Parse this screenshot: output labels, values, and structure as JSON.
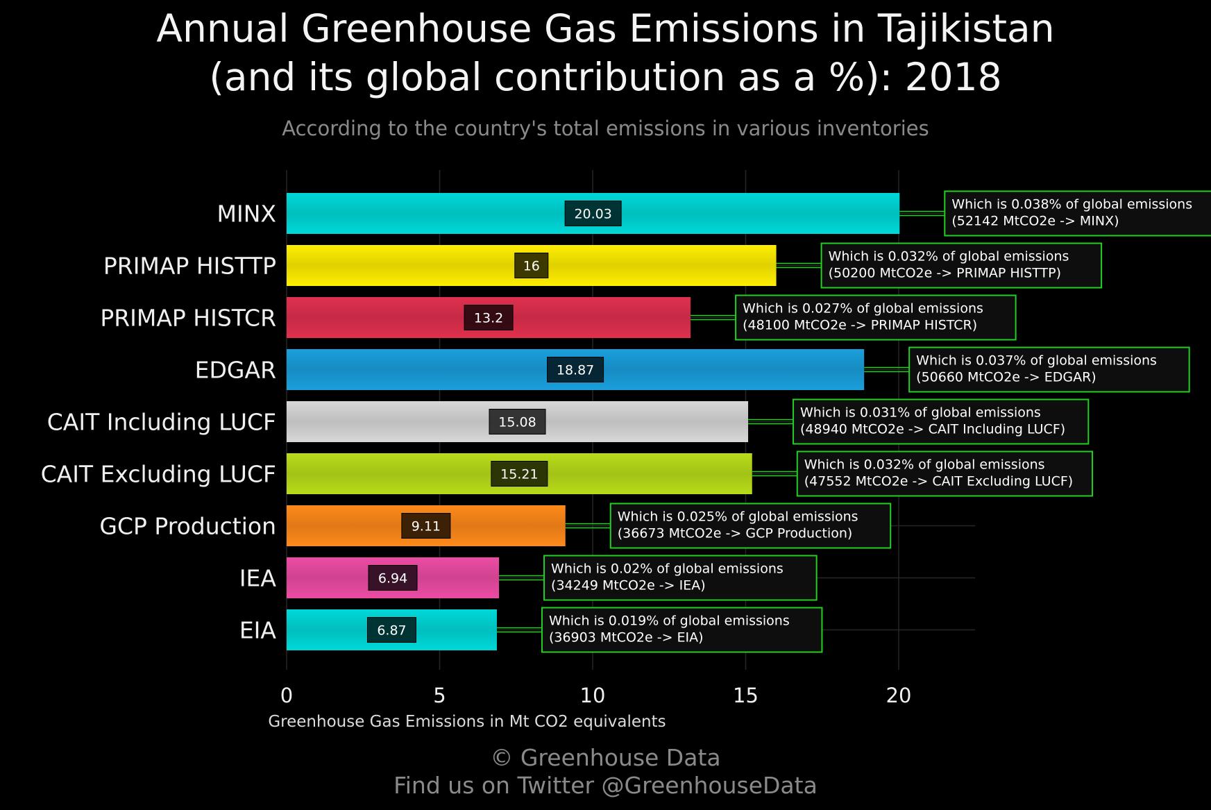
{
  "chart_data": {
    "type": "bar",
    "orientation": "horizontal",
    "title_line1": "Annual Greenhouse Gas Emissions in Tajikistan",
    "title_line2": "(and its global contribution as a %): 2018",
    "subtitle": "According to the country's total emissions in various inventories",
    "xlabel": "Greenhouse Gas Emissions in Mt CO2 equivalents",
    "xlim": [
      0,
      22.5
    ],
    "xticks": [
      "0",
      "5",
      "10",
      "15",
      "20"
    ],
    "grid": true,
    "caption_line1": "© Greenhouse Data",
    "caption_line2": "Find us on Twitter @GreenhouseData",
    "bars": [
      {
        "category": "MINX",
        "value": 20.03,
        "label": "20.03",
        "color": "#00d8d8",
        "note1": "Which is 0.038% of global emissions",
        "note2": "(52142 MtCO2e -> MINX)"
      },
      {
        "category": "PRIMAP HISTTP",
        "value": 16,
        "label": "16",
        "color": "#ffee00",
        "note1": "Which is 0.032% of global emissions",
        "note2": "(50200 MtCO2e -> PRIMAP HISTTP)"
      },
      {
        "category": "PRIMAP HISTCR",
        "value": 13.2,
        "label": "13.2",
        "color": "#e0304e",
        "note1": "Which is 0.027% of global emissions",
        "note2": "(48100 MtCO2e -> PRIMAP HISTCR)"
      },
      {
        "category": "EDGAR",
        "value": 18.87,
        "label": "18.87",
        "color": "#1a9fdc",
        "note1": "Which is 0.037% of global emissions",
        "note2": "(50660 MtCO2e -> EDGAR)"
      },
      {
        "category": "CAIT Including LUCF",
        "value": 15.08,
        "label": "15.08",
        "color": "#d8d8d8",
        "note1": "Which is 0.031% of global emissions",
        "note2": "(48940 MtCO2e -> CAIT Including LUCF)"
      },
      {
        "category": "CAIT Excluding LUCF",
        "value": 15.21,
        "label": "15.21",
        "color": "#b8dc1a",
        "note1": "Which is 0.032% of global emissions",
        "note2": "(47552 MtCO2e -> CAIT Excluding LUCF)"
      },
      {
        "category": "GCP Production",
        "value": 9.11,
        "label": "9.11",
        "color": "#ff8a1a",
        "note1": "Which is 0.025% of global emissions",
        "note2": "(36673 MtCO2e -> GCP Production)"
      },
      {
        "category": "IEA",
        "value": 6.94,
        "label": "6.94",
        "color": "#ec4ca4",
        "note1": "Which is 0.02% of global emissions",
        "note2": "(34249 MtCO2e -> IEA)"
      },
      {
        "category": "EIA",
        "value": 6.87,
        "label": "6.87",
        "color": "#00d8d8",
        "note1": "Which is 0.019% of global emissions",
        "note2": "(36903 MtCO2e -> EIA)"
      }
    ],
    "colors": {
      "background": "#000000",
      "grid": "#262626",
      "note_border": "#22d022",
      "note_fill": "#0e0e0e",
      "connector": "#22d022"
    }
  }
}
